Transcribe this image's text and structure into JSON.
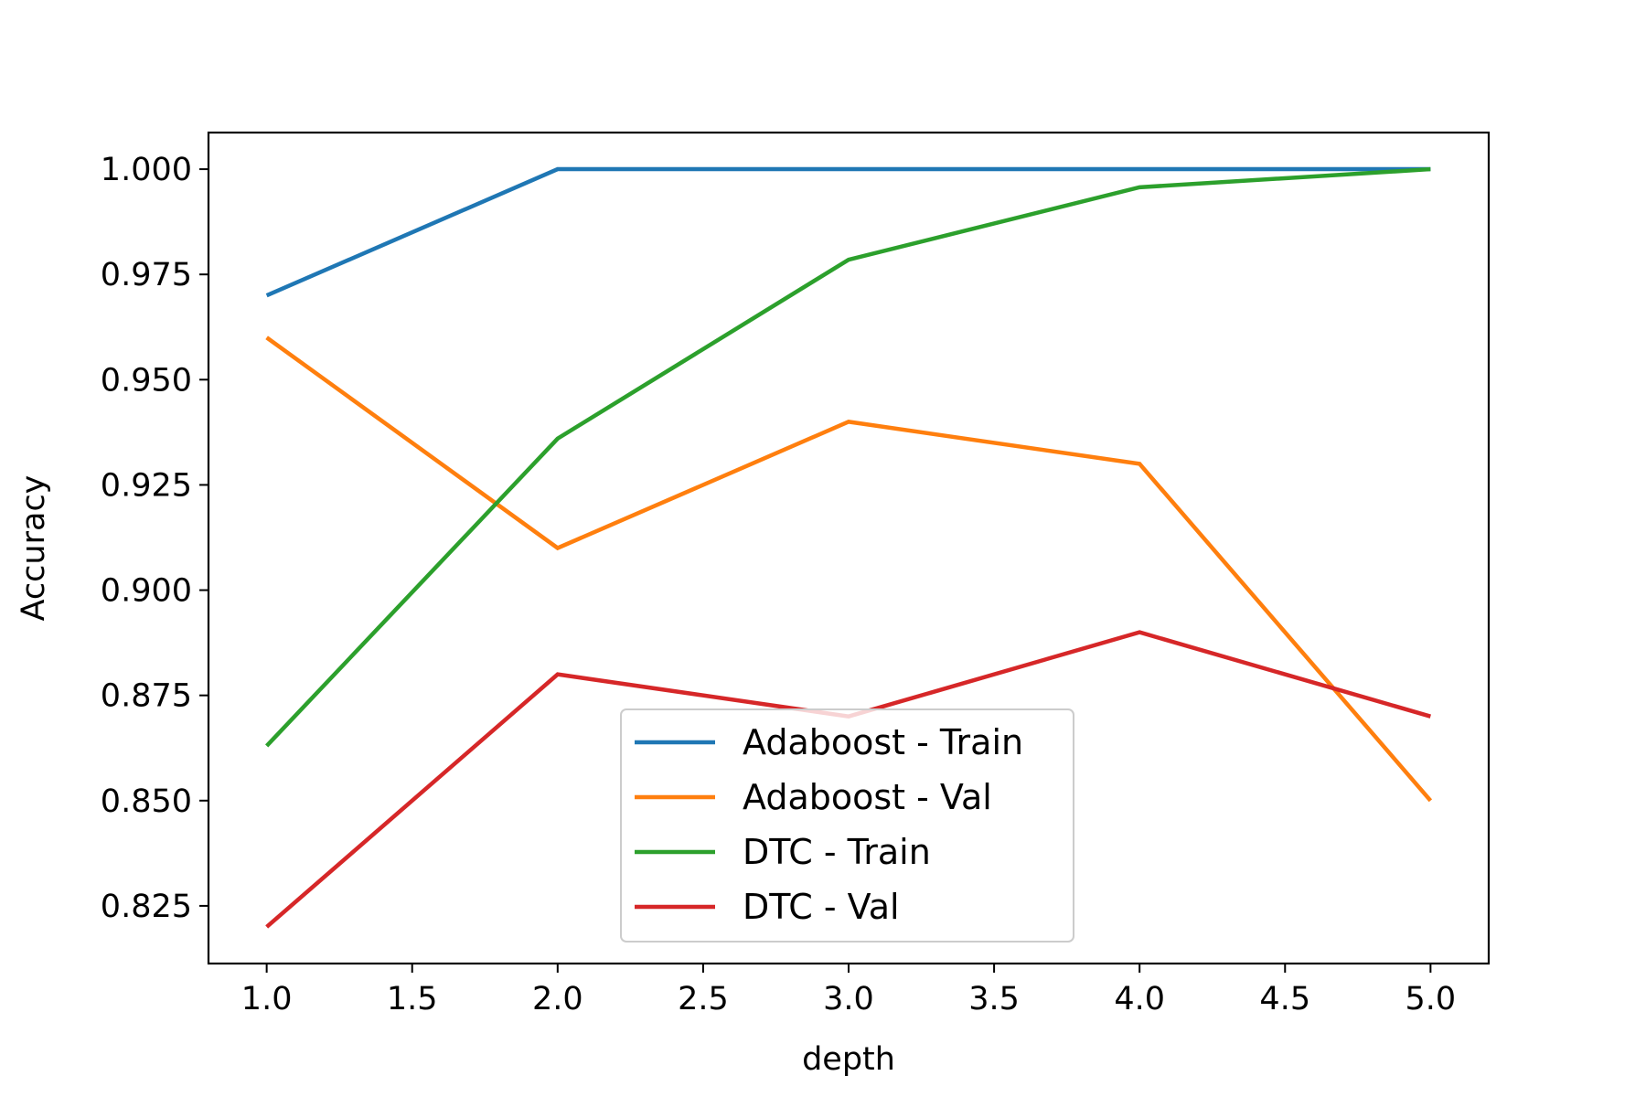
{
  "chart_data": {
    "type": "line",
    "xlabel": "depth",
    "ylabel": "Accuracy",
    "x": [
      1.0,
      2.0,
      3.0,
      4.0,
      5.0
    ],
    "xlim": [
      0.8,
      5.2
    ],
    "ylim": [
      0.8113,
      1.0087
    ],
    "xticks": [
      "1.0",
      "1.5",
      "2.0",
      "2.5",
      "3.0",
      "3.5",
      "4.0",
      "4.5",
      "5.0"
    ],
    "yticks": [
      "0.825",
      "0.850",
      "0.875",
      "0.900",
      "0.925",
      "0.950",
      "0.975",
      "1.000"
    ],
    "grid": false,
    "legend_position": "lower-center",
    "series": [
      {
        "name": "Adaboost - Train",
        "color": "#1f77b4",
        "values": [
          0.97,
          1.0,
          1.0,
          1.0,
          1.0
        ]
      },
      {
        "name": "Adaboost - Val",
        "color": "#ff7f0e",
        "values": [
          0.96,
          0.91,
          0.94,
          0.93,
          0.85
        ]
      },
      {
        "name": "DTC - Train",
        "color": "#2ca02c",
        "values": [
          0.863,
          0.936,
          0.9785,
          0.9957,
          1.0
        ]
      },
      {
        "name": "DTC - Val",
        "color": "#d62728",
        "values": [
          0.82,
          0.88,
          0.87,
          0.89,
          0.87
        ]
      }
    ]
  }
}
